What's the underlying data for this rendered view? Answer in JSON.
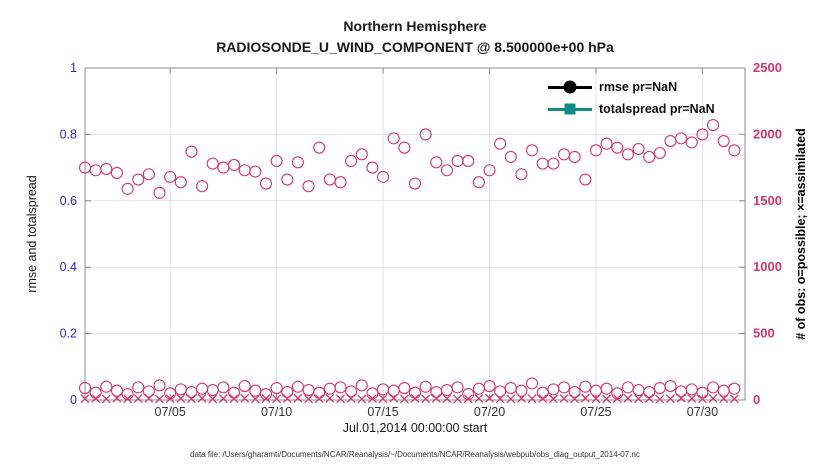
{
  "page": {
    "title_line1": "Northern Hemisphere",
    "title_line2": "RADIOSONDE_U_WIND_COMPONENT @ 8.500000e+00 hPa",
    "caption": "data file: /Users/gharamti/Documents/NCAR/Reanalysis/~/Documents/NCAR/Reanalysis/webpub/obs_diag_output_2014-07.nc"
  },
  "legend": {
    "items": [
      {
        "label": "rmse pr=NaN",
        "color": "#000000",
        "marker": "circle"
      },
      {
        "label": "totalspread pr=NaN",
        "color": "#0e8c85",
        "marker": "square"
      }
    ]
  },
  "chart_data": {
    "type": "scatter",
    "title": "Northern Hemisphere",
    "subtitle": "RADIOSONDE_U_WIND_COMPONENT @ 8.500000e+00 hPa",
    "xlabel": "Jul.01,2014 00:00:00 start",
    "ylabel_left": "rmse and totalspread",
    "ylabel_right": "# of obs: o=possible; ×=assimilated",
    "ylim_left": [
      0,
      1
    ],
    "yticks_left": [
      0,
      0.2,
      0.4,
      0.6,
      0.8,
      1
    ],
    "ytick_labels_left": [
      "0",
      "0.2",
      "0.4",
      "0.6",
      "0.8",
      "1"
    ],
    "ylim_right": [
      0,
      2500
    ],
    "yticks_right": [
      0,
      500,
      1000,
      1500,
      2000,
      2500
    ],
    "ytick_labels_right": [
      "0",
      "500",
      "1000",
      "1500",
      "2000",
      "2500"
    ],
    "xlim_days": [
      1,
      32
    ],
    "xticks": [
      {
        "day": 5,
        "label": "07/05"
      },
      {
        "day": 10,
        "label": "07/10"
      },
      {
        "day": 15,
        "label": "07/15"
      },
      {
        "day": 20,
        "label": "07/20"
      },
      {
        "day": 25,
        "label": "07/25"
      },
      {
        "day": 30,
        "label": "07/30"
      }
    ],
    "grid": true,
    "legend_position": "top-right-inside",
    "colors": {
      "obs": "#d6356b",
      "left_axis_text": "#2929cc",
      "right_axis_text": "#d6356b",
      "x_axis_text": "#333333",
      "grid": "#e2e2e2",
      "axis_box": "#8c8c8c",
      "rmse": "#000000",
      "totalspread": "#0e8c85"
    },
    "series": [
      {
        "name": "possible-obs",
        "marker": "o",
        "axis": "right",
        "x": [
          1,
          1.5,
          2,
          2.5,
          3,
          3.5,
          4,
          4.5,
          5,
          5.5,
          6,
          6.5,
          7,
          7.5,
          8,
          8.5,
          9,
          9.5,
          10,
          10.5,
          11,
          11.5,
          12,
          12.5,
          13,
          13.5,
          14,
          14.5,
          15,
          15.5,
          16,
          16.5,
          17,
          17.5,
          18,
          18.5,
          19,
          19.5,
          20,
          20.5,
          21,
          21.5,
          22,
          22.5,
          23,
          23.5,
          24,
          24.5,
          25,
          25.5,
          26,
          26.5,
          27,
          27.5,
          28,
          28.5,
          29,
          29.5,
          30,
          30.5,
          31,
          31.5
        ],
        "y": [
          1750,
          1730,
          1740,
          1710,
          1590,
          1660,
          1700,
          1560,
          1680,
          1640,
          1870,
          1610,
          1780,
          1750,
          1770,
          1730,
          1720,
          1630,
          1800,
          1660,
          1790,
          1610,
          1900,
          1660,
          1640,
          1800,
          1850,
          1750,
          1680,
          1970,
          1900,
          1630,
          2000,
          1790,
          1730,
          1800,
          1800,
          1640,
          1730,
          1930,
          1830,
          1700,
          1880,
          1780,
          1780,
          1850,
          1830,
          1660,
          1880,
          1930,
          1900,
          1850,
          1890,
          1830,
          1860,
          1950,
          1970,
          1940,
          2000,
          2070,
          1950,
          1880
        ]
      },
      {
        "name": "possible-obs-low",
        "marker": "o",
        "axis": "right",
        "x": [
          1,
          1.5,
          2,
          2.5,
          3,
          3.5,
          4,
          4.5,
          5,
          5.5,
          6,
          6.5,
          7,
          7.5,
          8,
          8.5,
          9,
          9.5,
          10,
          10.5,
          11,
          11.5,
          12,
          12.5,
          13,
          13.5,
          14,
          14.5,
          15,
          15.5,
          16,
          16.5,
          17,
          17.5,
          18,
          18.5,
          19,
          19.5,
          20,
          20.5,
          21,
          21.5,
          22,
          22.5,
          23,
          23.5,
          24,
          24.5,
          25,
          25.5,
          26,
          26.5,
          27,
          27.5,
          28,
          28.5,
          29,
          29.5,
          30,
          30.5,
          31,
          31.5
        ],
        "y": [
          90,
          55,
          100,
          70,
          45,
          95,
          65,
          110,
          50,
          80,
          60,
          85,
          75,
          95,
          55,
          105,
          70,
          45,
          90,
          60,
          100,
          75,
          55,
          85,
          95,
          65,
          110,
          50,
          80,
          70,
          90,
          55,
          100,
          60,
          75,
          95,
          45,
          85,
          105,
          65,
          90,
          70,
          125,
          55,
          80,
          95,
          60,
          100,
          70,
          85,
          50,
          95,
          75,
          60,
          90,
          105,
          65,
          80,
          55,
          95,
          70,
          85
        ]
      },
      {
        "name": "assimilated-obs",
        "marker": "x",
        "axis": "right",
        "x": [
          1,
          1.5,
          2,
          2.5,
          3,
          3.5,
          4,
          4.5,
          5,
          5.5,
          6,
          6.5,
          7,
          7.5,
          8,
          8.5,
          9,
          9.5,
          10,
          10.5,
          11,
          11.5,
          12,
          12.5,
          13,
          13.5,
          14,
          14.5,
          15,
          15.5,
          16,
          16.5,
          17,
          17.5,
          18,
          18.5,
          19,
          19.5,
          20,
          20.5,
          21,
          21.5,
          22,
          22.5,
          23,
          23.5,
          24,
          24.5,
          25,
          25.5,
          26,
          26.5,
          27,
          27.5,
          28,
          28.5,
          29,
          29.5,
          30,
          30.5,
          31,
          31.5
        ],
        "y": [
          10,
          12,
          8,
          14,
          9,
          11,
          13,
          7,
          10,
          12,
          9,
          14,
          8,
          11,
          10,
          13,
          7,
          12,
          9,
          11,
          14,
          8,
          10,
          13,
          9,
          12,
          7,
          11,
          10,
          14,
          8,
          12,
          9,
          13,
          11,
          7,
          10,
          12,
          14,
          9,
          8,
          13,
          10,
          11,
          7,
          12,
          9,
          14,
          10,
          8,
          11,
          13,
          9,
          12,
          7,
          10,
          14,
          11,
          8,
          12,
          10,
          9
        ]
      }
    ]
  }
}
